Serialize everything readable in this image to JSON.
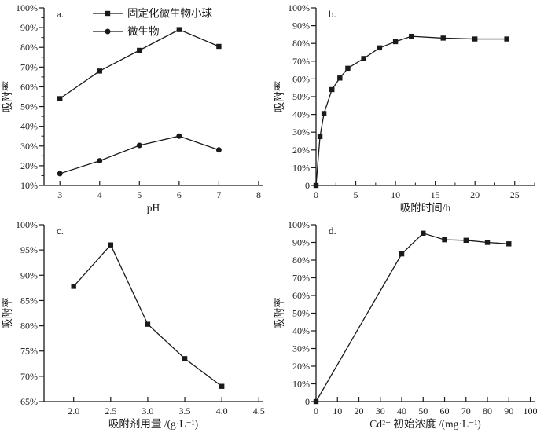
{
  "figure": {
    "background": "#ffffff",
    "line_color": "#1a1a1a",
    "text_color": "#1a1a1a",
    "marker_color": "#111111"
  },
  "chart_data": [
    {
      "id": "a",
      "type": "line",
      "panel_label": "a.",
      "xlabel": "pH",
      "ylabel": "吸附率",
      "xlim": [
        2.6,
        8.1
      ],
      "ylim": [
        10,
        100
      ],
      "xticks": [
        3,
        4,
        5,
        6,
        7,
        8
      ],
      "xticks_minor": [],
      "yticks": [
        10,
        20,
        30,
        40,
        50,
        60,
        70,
        80,
        90,
        100
      ],
      "yticks_minor": [
        15,
        25,
        35,
        45,
        55,
        65,
        75,
        85,
        95
      ],
      "x_decimals": 0,
      "grid": false,
      "legend": {
        "position": "top-left-inside",
        "items": [
          {
            "label": "固定化微生物小球",
            "marker": "square"
          },
          {
            "label": "微生物",
            "marker": "circle"
          }
        ]
      },
      "series": [
        {
          "name": "固定化微生物小球",
          "marker": "square",
          "x": [
            3,
            4,
            5,
            6,
            7
          ],
          "y": [
            54,
            68,
            78.5,
            89,
            80.5
          ]
        },
        {
          "name": "微生物",
          "marker": "circle",
          "x": [
            3,
            4,
            5,
            6,
            7
          ],
          "y": [
            16,
            22.5,
            30.3,
            35,
            28
          ]
        }
      ]
    },
    {
      "id": "b",
      "type": "line",
      "panel_label": "b.",
      "xlabel": "吸附时间/h",
      "ylabel": "吸附率",
      "xlim": [
        0,
        27.5
      ],
      "ylim": [
        0,
        100
      ],
      "xticks": [
        0,
        5,
        10,
        15,
        20,
        25
      ],
      "xticks_minor": [
        2.5,
        7.5,
        12.5,
        17.5,
        22.5,
        27.5
      ],
      "yticks": [
        0,
        10,
        20,
        30,
        40,
        50,
        60,
        70,
        80,
        90,
        100
      ],
      "yticks_minor": [],
      "x_decimals": 0,
      "grid": false,
      "series": [
        {
          "name": "固定化微生物小球",
          "marker": "square",
          "x": [
            0,
            0.5,
            1,
            2,
            3,
            4,
            6,
            8,
            10,
            12,
            16,
            20,
            24
          ],
          "y": [
            0,
            27.5,
            40.5,
            54,
            60.5,
            66,
            71.5,
            77.5,
            81,
            84,
            83,
            82.5,
            82.5
          ]
        }
      ]
    },
    {
      "id": "c",
      "type": "line",
      "panel_label": "c.",
      "xlabel": "吸附剂用量 /(g·L⁻¹)",
      "ylabel": "吸附率",
      "xlim": [
        1.6,
        4.55
      ],
      "ylim": [
        65,
        100
      ],
      "xticks": [
        2.0,
        2.5,
        3.0,
        3.5,
        4.0,
        4.5
      ],
      "xticks_minor": [],
      "yticks": [
        65,
        70,
        75,
        80,
        85,
        90,
        95,
        100
      ],
      "yticks_minor": [],
      "x_decimals": 1,
      "grid": false,
      "series": [
        {
          "name": "固定化微生物小球",
          "marker": "square",
          "x": [
            2.0,
            2.5,
            3.0,
            3.5,
            4.0
          ],
          "y": [
            87.8,
            96,
            80.3,
            73.5,
            68
          ]
        }
      ]
    },
    {
      "id": "d",
      "type": "line",
      "panel_label": "d.",
      "xlabel": "Cd²⁺ 初始浓度 /(mg·L⁻¹)",
      "ylabel": "吸附率",
      "xlim": [
        0,
        102
      ],
      "ylim": [
        0,
        100
      ],
      "xticks": [
        0,
        10,
        20,
        30,
        40,
        50,
        60,
        70,
        80,
        90,
        100
      ],
      "xticks_minor": [],
      "yticks": [
        0,
        10,
        20,
        30,
        40,
        50,
        60,
        70,
        80,
        90,
        100
      ],
      "yticks_minor": [],
      "x_decimals": 0,
      "grid": false,
      "series": [
        {
          "name": "固定化微生物小球",
          "marker": "square",
          "x": [
            0,
            40,
            50,
            60,
            70,
            80,
            90
          ],
          "y": [
            0,
            83.5,
            95.2,
            91.5,
            91.2,
            90,
            89.2
          ]
        }
      ]
    }
  ]
}
